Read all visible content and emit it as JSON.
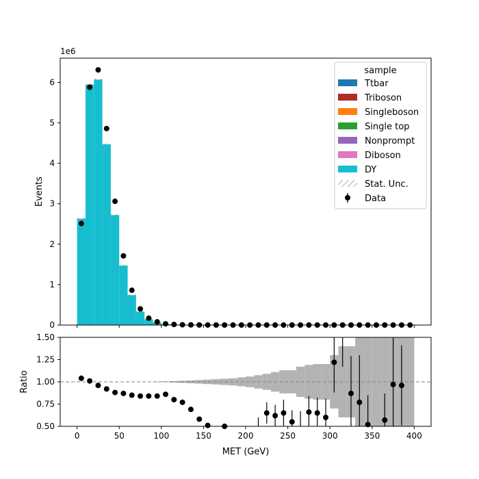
{
  "chart_data": [
    {
      "type": "bar",
      "panel": "main",
      "stacked_histogram": true,
      "x_bin_edges": [
        0,
        10,
        20,
        30,
        40,
        50,
        60,
        70,
        80,
        90,
        100,
        110,
        120,
        130,
        140,
        150,
        160,
        170,
        180,
        190,
        200,
        210,
        220,
        230,
        240,
        250,
        260,
        270,
        280,
        290,
        300,
        310,
        320,
        330,
        340,
        350,
        360,
        370,
        380,
        390,
        400
      ],
      "x_ticks": [
        "0",
        "50",
        "100",
        "150",
        "200",
        "250",
        "300",
        "350",
        "400"
      ],
      "xlim": [
        -20,
        420
      ],
      "y_ticks": [
        "0",
        "1",
        "2",
        "3",
        "4",
        "5",
        "6"
      ],
      "ylabel": "Events",
      "y_offset_text": "1e6",
      "ylim": [
        0,
        6.6
      ],
      "legend_title": "sample",
      "legend_placement": "top-right",
      "series": [
        {
          "name": "Ttbar",
          "color": "#1f77b4",
          "kind": "stack"
        },
        {
          "name": "Triboson",
          "color": "#b22b2b",
          "kind": "stack"
        },
        {
          "name": "Singleboson",
          "color": "#ff7f0e",
          "kind": "stack"
        },
        {
          "name": "Single top",
          "color": "#2ca02c",
          "kind": "stack"
        },
        {
          "name": "Nonprompt",
          "color": "#9467bd",
          "kind": "stack"
        },
        {
          "name": "Diboson",
          "color": "#e377c2",
          "kind": "stack"
        },
        {
          "name": "DY",
          "color": "#17becf",
          "kind": "stack",
          "values": [
            2.63,
            5.95,
            6.07,
            4.47,
            2.72,
            1.47,
            0.74,
            0.33,
            0.14,
            0.06,
            0.025,
            0.012,
            0.006,
            0.003,
            0.002,
            0.001,
            0,
            0,
            0,
            0,
            0,
            0,
            0,
            0,
            0,
            0,
            0,
            0,
            0,
            0,
            0,
            0,
            0,
            0,
            0,
            0,
            0,
            0,
            0,
            0
          ]
        },
        {
          "name": "Stat. Unc.",
          "color": "#808080",
          "kind": "hatch"
        },
        {
          "name": "Data",
          "color": "#000000",
          "kind": "points",
          "values": [
            2.51,
            5.88,
            6.31,
            4.86,
            3.06,
            1.71,
            0.86,
            0.4,
            0.17,
            0.08,
            0.03,
            0.015,
            0.007,
            0.004,
            0.002,
            0.001,
            0,
            0,
            0,
            0,
            0,
            0,
            0,
            0,
            0,
            0,
            0,
            0,
            0,
            0,
            0,
            0,
            0,
            0,
            0,
            0,
            0,
            0,
            0,
            0
          ]
        }
      ]
    },
    {
      "type": "scatter",
      "panel": "ratio",
      "xlabel": "MET (GeV)",
      "ylabel": "Ratio",
      "ylim": [
        0.5,
        1.5
      ],
      "xlim": [
        -20,
        420
      ],
      "x_ticks": [
        "0",
        "50",
        "100",
        "150",
        "200",
        "250",
        "300",
        "350",
        "400"
      ],
      "y_ticks": [
        "0.50",
        "0.75",
        "1.00",
        "1.25",
        "1.50"
      ],
      "reference_line": 1.0,
      "unc_band": {
        "x_bin_edges": [
          90,
          100,
          110,
          120,
          130,
          140,
          150,
          160,
          170,
          180,
          190,
          200,
          210,
          220,
          230,
          240,
          250,
          260,
          270,
          280,
          290,
          300,
          310,
          320,
          330,
          340,
          350,
          360,
          370,
          380,
          390,
          400
        ],
        "halfwidth": [
          0.003,
          0.005,
          0.008,
          0.012,
          0.016,
          0.02,
          0.025,
          0.03,
          0.035,
          0.04,
          0.05,
          0.06,
          0.075,
          0.09,
          0.11,
          0.13,
          0.13,
          0.17,
          0.19,
          0.2,
          0.2,
          0.3,
          0.4,
          0.4,
          0.6,
          0.7,
          0.55,
          0.58,
          0.65,
          0.5,
          0.6
        ]
      },
      "points": [
        {
          "x": 5,
          "y": 1.04,
          "err": 0
        },
        {
          "x": 15,
          "y": 1.01,
          "err": 0
        },
        {
          "x": 25,
          "y": 0.96,
          "err": 0
        },
        {
          "x": 35,
          "y": 0.92,
          "err": 0
        },
        {
          "x": 45,
          "y": 0.88,
          "err": 0
        },
        {
          "x": 55,
          "y": 0.87,
          "err": 0
        },
        {
          "x": 65,
          "y": 0.85,
          "err": 0
        },
        {
          "x": 75,
          "y": 0.84,
          "err": 0
        },
        {
          "x": 85,
          "y": 0.84,
          "err": 0
        },
        {
          "x": 95,
          "y": 0.84,
          "err": 0
        },
        {
          "x": 105,
          "y": 0.86,
          "err": 0
        },
        {
          "x": 115,
          "y": 0.8,
          "err": 0
        },
        {
          "x": 125,
          "y": 0.77,
          "err": 0
        },
        {
          "x": 135,
          "y": 0.69,
          "err": 0
        },
        {
          "x": 145,
          "y": 0.58,
          "err": 0
        },
        {
          "x": 155,
          "y": 0.51,
          "err": 0
        },
        {
          "x": 175,
          "y": 0.5,
          "err": 0.02
        },
        {
          "x": 215,
          "y": 0.47,
          "err": 0.13
        },
        {
          "x": 225,
          "y": 0.65,
          "err": 0.12
        },
        {
          "x": 235,
          "y": 0.62,
          "err": 0.12
        },
        {
          "x": 245,
          "y": 0.65,
          "err": 0.15
        },
        {
          "x": 255,
          "y": 0.55,
          "err": 0.13
        },
        {
          "x": 265,
          "y": 0.46,
          "err": 0.21
        },
        {
          "x": 275,
          "y": 0.66,
          "err": 0.18
        },
        {
          "x": 285,
          "y": 0.65,
          "err": 0.17
        },
        {
          "x": 295,
          "y": 0.6,
          "err": 0.21
        },
        {
          "x": 305,
          "y": 1.22,
          "err": 0.34
        },
        {
          "x": 315,
          "y": 1.62,
          "err": 0.45
        },
        {
          "x": 325,
          "y": 0.87,
          "err": 0.42
        },
        {
          "x": 335,
          "y": 0.77,
          "err": 0.53
        },
        {
          "x": 345,
          "y": 0.52,
          "err": 0.33
        },
        {
          "x": 365,
          "y": 0.57,
          "err": 0.3
        },
        {
          "x": 375,
          "y": 0.97,
          "err": 0.55
        },
        {
          "x": 385,
          "y": 0.96,
          "err": 0.45
        }
      ]
    }
  ]
}
